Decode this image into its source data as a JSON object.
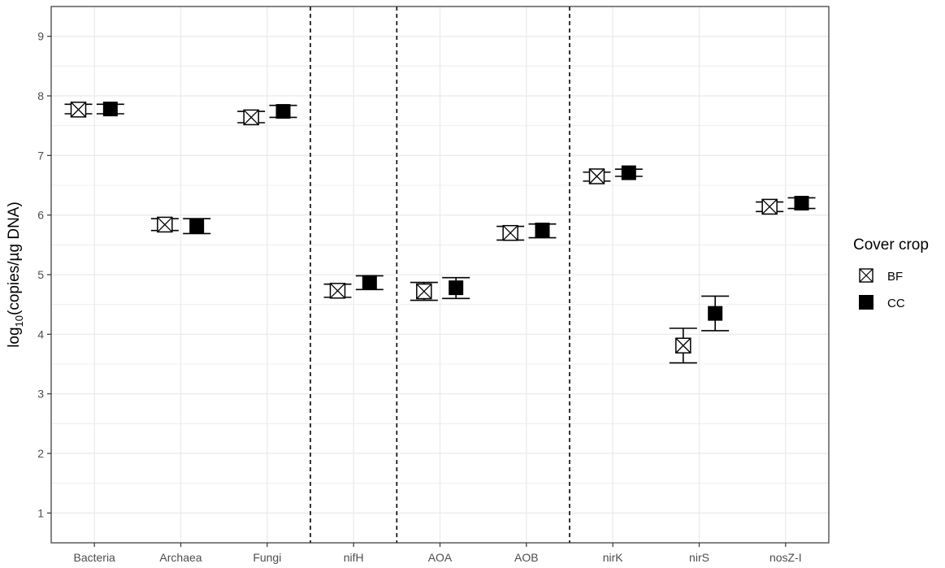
{
  "chart_data": {
    "type": "scatter",
    "title": "",
    "xlabel": "",
    "ylabel_main": "log",
    "ylabel_sub": "10",
    "ylabel_rest": "(copies/µg DNA)",
    "categories": [
      "Bacteria",
      "Archaea",
      "Fungi",
      "nifH",
      "AOA",
      "AOB",
      "nirK",
      "nirS",
      "nosZ-I"
    ],
    "ylim": [
      0.5,
      9.5
    ],
    "yticks": [
      1,
      2,
      3,
      4,
      5,
      6,
      7,
      8,
      9
    ],
    "grid": true,
    "group_separators_after": [
      "Fungi",
      "nifH",
      "AOB"
    ],
    "legend": {
      "title": "Cover crop",
      "position": "right"
    },
    "series": [
      {
        "name": "BF",
        "marker": "boxed-x",
        "values": [
          7.77,
          5.84,
          7.64,
          4.73,
          4.72,
          5.7,
          6.65,
          3.81,
          6.14
        ],
        "err_low": [
          7.7,
          5.74,
          7.55,
          4.62,
          4.57,
          5.58,
          6.57,
          3.52,
          6.06
        ],
        "err_high": [
          7.86,
          5.94,
          7.74,
          4.84,
          4.87,
          5.81,
          6.72,
          4.1,
          6.22
        ]
      },
      {
        "name": "CC",
        "marker": "filled-square",
        "values": [
          7.78,
          5.81,
          7.74,
          4.87,
          4.78,
          5.75,
          6.71,
          4.35,
          6.2
        ],
        "err_low": [
          7.7,
          5.69,
          7.64,
          4.75,
          4.6,
          5.62,
          6.65,
          4.06,
          6.11
        ],
        "err_high": [
          7.86,
          5.94,
          7.84,
          4.98,
          4.95,
          5.85,
          6.77,
          4.64,
          6.29
        ]
      }
    ],
    "colors": {
      "panel_border": "#333333",
      "grid": "#ebebeb",
      "marker": "#000000",
      "separator": "#000000"
    }
  }
}
